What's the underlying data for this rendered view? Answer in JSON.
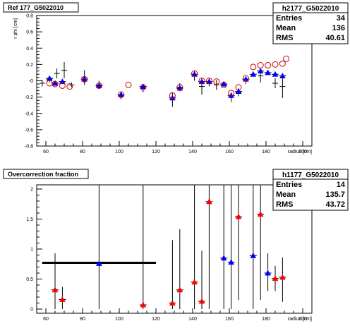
{
  "chart_data": [
    {
      "type": "scatter",
      "title": "Ref 177_G5022010",
      "ylabel": "r phi [cm]",
      "xlabel": "radius [cm]",
      "xlim": [
        55,
        205
      ],
      "ylim": [
        -0.8,
        0.8
      ],
      "x_ticks": [
        "60",
        "80",
        "100",
        "120",
        "140",
        "160",
        "180",
        "200"
      ],
      "y_ticks": [
        "-0.8",
        "-0.6",
        "-0.4",
        "-0.2",
        "-0",
        "0.2",
        "0.4",
        "0.6",
        "0.8"
      ],
      "x_tick_values": [
        60,
        80,
        100,
        120,
        140,
        160,
        180,
        200
      ],
      "y_tick_values": [
        -0.8,
        -0.6,
        -0.4,
        -0.2,
        0,
        0.2,
        0.4,
        0.6,
        0.8
      ],
      "stats": {
        "name": "h2177_G5022010",
        "rows": [
          {
            "label": "Entries",
            "value": "34"
          },
          {
            "label": "Mean",
            "value": "136"
          },
          {
            "label": "RMS",
            "value": "40.61"
          }
        ]
      },
      "series": [
        {
          "marker": "plus",
          "color": "#000000",
          "points": [
            {
              "x": 58,
              "y": -0.03,
              "err": 0.04
            },
            {
              "x": 62,
              "y": 0.02,
              "err": 0.04
            },
            {
              "x": 66,
              "y": 0.09,
              "err": 0.06
            },
            {
              "x": 70,
              "y": 0.13,
              "err": 0.1
            },
            {
              "x": 74,
              "y": -0.05,
              "err": 0.03
            },
            {
              "x": 81,
              "y": 0.04,
              "err": 0.09
            },
            {
              "x": 89,
              "y": -0.05,
              "err": 0.05
            },
            {
              "x": 101,
              "y": -0.18,
              "err": 0.05
            },
            {
              "x": 113,
              "y": -0.09,
              "err": 0.05
            },
            {
              "x": 129,
              "y": -0.23,
              "err": 0.09
            },
            {
              "x": 133,
              "y": -0.08,
              "err": 0.05
            },
            {
              "x": 141,
              "y": 0.06,
              "err": 0.06
            },
            {
              "x": 145,
              "y": -0.07,
              "err": 0.1
            },
            {
              "x": 149,
              "y": -0.02,
              "err": 0.05
            },
            {
              "x": 153,
              "y": -0.05,
              "err": 0.06
            },
            {
              "x": 161,
              "y": -0.2,
              "err": 0.06
            },
            {
              "x": 165,
              "y": -0.14,
              "err": 0.05
            },
            {
              "x": 169,
              "y": 0.0,
              "err": 0.04
            },
            {
              "x": 177,
              "y": 0.06,
              "err": 0.08
            },
            {
              "x": 185,
              "y": -0.03,
              "err": 0.06
            },
            {
              "x": 189,
              "y": -0.07,
              "err": 0.14
            }
          ]
        },
        {
          "marker": "triangle",
          "color": "#0000ff",
          "points": [
            {
              "x": 62,
              "y": 0.03
            },
            {
              "x": 65,
              "y": -0.03
            },
            {
              "x": 69,
              "y": -0.01
            },
            {
              "x": 81,
              "y": 0.02
            },
            {
              "x": 89,
              "y": -0.06
            },
            {
              "x": 101,
              "y": -0.17
            },
            {
              "x": 113,
              "y": -0.07
            },
            {
              "x": 129,
              "y": -0.21
            },
            {
              "x": 133,
              "y": -0.09
            },
            {
              "x": 141,
              "y": 0.08
            },
            {
              "x": 145,
              "y": -0.01
            },
            {
              "x": 149,
              "y": -0.01
            },
            {
              "x": 157,
              "y": -0.04
            },
            {
              "x": 161,
              "y": -0.18
            },
            {
              "x": 165,
              "y": -0.13
            },
            {
              "x": 169,
              "y": 0.02
            },
            {
              "x": 173,
              "y": 0.08
            },
            {
              "x": 177,
              "y": 0.12
            },
            {
              "x": 181,
              "y": 0.1
            },
            {
              "x": 185,
              "y": 0.08
            },
            {
              "x": 189,
              "y": 0.06
            }
          ]
        },
        {
          "marker": "open-circle",
          "color": "#cc0000",
          "points": [
            {
              "x": 62,
              "y": -0.03
            },
            {
              "x": 65,
              "y": -0.04
            },
            {
              "x": 69,
              "y": -0.06
            },
            {
              "x": 73,
              "y": -0.07
            },
            {
              "x": 81,
              "y": 0.02
            },
            {
              "x": 89,
              "y": -0.06
            },
            {
              "x": 101,
              "y": -0.17
            },
            {
              "x": 105,
              "y": -0.05
            },
            {
              "x": 113,
              "y": -0.08
            },
            {
              "x": 129,
              "y": -0.18
            },
            {
              "x": 133,
              "y": -0.08
            },
            {
              "x": 141,
              "y": 0.09
            },
            {
              "x": 145,
              "y": 0.0
            },
            {
              "x": 149,
              "y": 0.0
            },
            {
              "x": 153,
              "y": -0.01
            },
            {
              "x": 157,
              "y": -0.05
            },
            {
              "x": 161,
              "y": -0.15
            },
            {
              "x": 165,
              "y": -0.08
            },
            {
              "x": 169,
              "y": 0.03
            },
            {
              "x": 173,
              "y": 0.17
            },
            {
              "x": 177,
              "y": 0.19
            },
            {
              "x": 181,
              "y": 0.19
            },
            {
              "x": 185,
              "y": 0.2
            },
            {
              "x": 189,
              "y": 0.21
            },
            {
              "x": 191,
              "y": 0.27
            }
          ]
        }
      ]
    },
    {
      "type": "scatter",
      "title": "Overcorrection fraction",
      "xlabel": "radius [cm]",
      "ylabel": "",
      "xlim": [
        55,
        205
      ],
      "ylim": [
        -0.07,
        2.07
      ],
      "x_ticks": [
        "60",
        "80",
        "100",
        "120",
        "140",
        "160",
        "180",
        "200"
      ],
      "y_ticks": [
        "0",
        "0.5",
        "1",
        "1.5",
        "2"
      ],
      "x_tick_values": [
        60,
        80,
        100,
        120,
        140,
        160,
        180,
        200
      ],
      "y_tick_values": [
        0,
        0.5,
        1,
        1.5,
        2
      ],
      "stats": {
        "name": "h1177_G5022010",
        "rows": [
          {
            "label": "Entries",
            "value": "14"
          },
          {
            "label": "Mean",
            "value": "135.7"
          },
          {
            "label": "RMS",
            "value": "43.72"
          }
        ]
      },
      "reference_line": {
        "y": 0.77,
        "x_from": 58,
        "x_to": 120
      },
      "series": [
        {
          "marker": "triangle",
          "color": "#ff0000",
          "points": [
            {
              "x": 65,
              "y": 0.32,
              "y_low": 0.0,
              "y_high": 0.93
            },
            {
              "x": 69,
              "y": 0.16,
              "y_low": 0.0,
              "y_high": 0.37
            },
            {
              "x": 113,
              "y": 0.07,
              "y_low": 0.0,
              "y_high": 2.07
            },
            {
              "x": 129,
              "y": 0.1,
              "y_low": 0.0,
              "y_high": 1.15
            },
            {
              "x": 133,
              "y": 0.32,
              "y_low": 0.0,
              "y_high": 1.33
            },
            {
              "x": 141,
              "y": 0.45,
              "y_low": 0.0,
              "y_high": 2.07
            },
            {
              "x": 145,
              "y": 0.13,
              "y_low": 0.0,
              "y_high": 0.97
            },
            {
              "x": 149,
              "y": 1.79,
              "y_low": 0.0,
              "y_high": 2.07
            },
            {
              "x": 165,
              "y": 1.54,
              "y_low": 0.15,
              "y_high": 2.07
            },
            {
              "x": 177,
              "y": 1.58,
              "y_low": 0.15,
              "y_high": 2.07
            },
            {
              "x": 185,
              "y": 0.51,
              "y_low": 0.3,
              "y_high": 0.72
            },
            {
              "x": 189,
              "y": 0.53,
              "y_low": 0.12,
              "y_high": 0.86
            }
          ]
        },
        {
          "marker": "triangle",
          "color": "#0000ff",
          "points": [
            {
              "x": 89,
              "y": 0.76,
              "y_low": 0.0,
              "y_high": 2.07
            },
            {
              "x": 157,
              "y": 0.85,
              "y_low": 0.0,
              "y_high": 2.07
            },
            {
              "x": 161,
              "y": 0.78,
              "y_low": 0.0,
              "y_high": 2.07
            },
            {
              "x": 173,
              "y": 0.89,
              "y_low": 0.0,
              "y_high": 2.07
            },
            {
              "x": 181,
              "y": 0.6,
              "y_low": 0.3,
              "y_high": 0.93
            }
          ]
        }
      ]
    }
  ]
}
